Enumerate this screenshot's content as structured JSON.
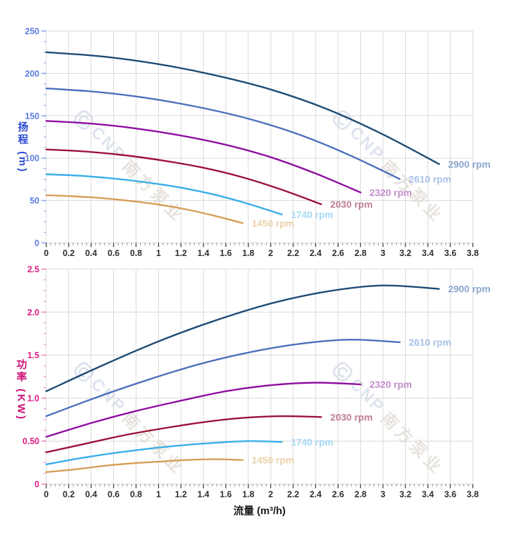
{
  "page": {
    "background": "#ffffff"
  },
  "watermark": {
    "brand_latin": "CNP",
    "brand_cn": "南方泵业"
  },
  "x_axis": {
    "label": "流量 (m³/h)",
    "min": 0,
    "max": 3.8,
    "major_step": 0.2,
    "minor_step": 0.04,
    "tick_labels": [
      "0",
      "0.2",
      "0.4",
      "0.6",
      "0.8",
      "1",
      "1.2",
      "1.4",
      "1.6",
      "1.8",
      "2",
      "2.2",
      "2.4",
      "2.6",
      "2.8",
      "3",
      "3.2",
      "3.4",
      "3.6",
      "3.8"
    ],
    "tick_label_color": "#2f2f2f",
    "major_tick_color": "#4a4a4a",
    "minor_tick_color": "#909090"
  },
  "chart_data": [
    {
      "id": "head-vs-flow",
      "type": "line",
      "title": "",
      "xlabel": "流量 (m³/h)",
      "ylabel": "扬程 (m)",
      "ylabel_cn": "扬程",
      "ylabel_unit": "(m)",
      "ylim": [
        0,
        250
      ],
      "xlim": [
        0,
        3.8
      ],
      "y_major_step": 50,
      "y_minor_step": 12.5,
      "y_tick_labels": [
        "0",
        "50",
        "100",
        "150",
        "200",
        "250"
      ],
      "grid": true,
      "grid_color": "#d8d8d8",
      "axis_title_color": "#2948cf",
      "tick_label_color": "#5b7be0",
      "tick_color": "#92a6ec",
      "legend_position": "end-of-line",
      "series": [
        {
          "name": "2900 rpm",
          "color": "#1c4a73",
          "label_color": "#8aa6cc",
          "points": [
            [
              0,
              225
            ],
            [
              0.5,
              220
            ],
            [
              1,
              211
            ],
            [
              1.5,
              198
            ],
            [
              2,
              181
            ],
            [
              2.5,
              158
            ],
            [
              3,
              128
            ],
            [
              3.5,
              93
            ]
          ]
        },
        {
          "name": "2610 rpm",
          "color": "#4a70bd",
          "label_color": "#a9c1e8",
          "points": [
            [
              0,
              182.3
            ],
            [
              0.45,
              178.2
            ],
            [
              0.9,
              170.9
            ],
            [
              1.35,
              160.4
            ],
            [
              1.8,
              146.6
            ],
            [
              2.25,
              128
            ],
            [
              2.7,
              103.7
            ],
            [
              3.15,
              75.3
            ]
          ]
        },
        {
          "name": "2320 rpm",
          "color": "#8e0da0",
          "label_color": "#c48ccc",
          "points": [
            [
              0,
              144
            ],
            [
              0.4,
              140.8
            ],
            [
              0.8,
              135
            ],
            [
              1.2,
              126.7
            ],
            [
              1.6,
              115.8
            ],
            [
              2,
              101.1
            ],
            [
              2.4,
              81.9
            ],
            [
              2.8,
              59.5
            ]
          ]
        },
        {
          "name": "2030 rpm",
          "color": "#9c1038",
          "label_color": "#bf7e92",
          "points": [
            [
              0,
              110.3
            ],
            [
              0.35,
              107.8
            ],
            [
              0.7,
              103.4
            ],
            [
              1.05,
              97
            ],
            [
              1.4,
              88.7
            ],
            [
              1.75,
              77.4
            ],
            [
              2.1,
              62.7
            ],
            [
              2.45,
              45.6
            ]
          ]
        },
        {
          "name": "1740 rpm",
          "color": "#38aee8",
          "label_color": "#a5d8f4",
          "points": [
            [
              0,
              81
            ],
            [
              0.3,
              79.2
            ],
            [
              0.6,
              76
            ],
            [
              0.9,
              71.3
            ],
            [
              1.2,
              65.2
            ],
            [
              1.5,
              56.9
            ],
            [
              1.8,
              46.1
            ],
            [
              2.1,
              33.5
            ]
          ]
        },
        {
          "name": "1450 rpm",
          "color": "#d79c55",
          "label_color": "#ebd2ab",
          "points": [
            [
              0,
              56.3
            ],
            [
              0.25,
              55
            ],
            [
              0.5,
              52.8
            ],
            [
              0.75,
              49.5
            ],
            [
              1,
              45.3
            ],
            [
              1.25,
              39.5
            ],
            [
              1.5,
              32
            ],
            [
              1.75,
              23.3
            ]
          ]
        }
      ]
    },
    {
      "id": "power-vs-flow",
      "type": "line",
      "title": "",
      "xlabel": "流量 (m³/h)",
      "ylabel": "功率 (KW)",
      "ylabel_cn": "功率",
      "ylabel_unit": "(KW)",
      "ylim": [
        0,
        2.5
      ],
      "xlim": [
        0,
        3.8
      ],
      "y_major_step": 0.5,
      "y_minor_step": 0.125,
      "y_tick_labels": [
        "0",
        "0.50",
        "1.0",
        "1.5",
        "2.0",
        "2.5"
      ],
      "grid": true,
      "grid_color": "#d8d8d8",
      "axis_title_color": "#cb0e76",
      "tick_label_color": "#e01984",
      "tick_color": "#f088c2",
      "legend_position": "end-of-line",
      "series": [
        {
          "name": "2900 rpm",
          "color": "#1c4a73",
          "label_color": "#8aa6cc",
          "points": [
            [
              0,
              1.08
            ],
            [
              0.5,
              1.38
            ],
            [
              1,
              1.66
            ],
            [
              1.5,
              1.9
            ],
            [
              2,
              2.1
            ],
            [
              2.5,
              2.24
            ],
            [
              3,
              2.31
            ],
            [
              3.5,
              2.27
            ]
          ]
        },
        {
          "name": "2610 rpm",
          "color": "#4a70bd",
          "label_color": "#a9c1e8",
          "points": [
            [
              0,
              0.79
            ],
            [
              0.45,
              1.01
            ],
            [
              0.9,
              1.21
            ],
            [
              1.35,
              1.39
            ],
            [
              1.8,
              1.53
            ],
            [
              2.25,
              1.63
            ],
            [
              2.7,
              1.68
            ],
            [
              3.15,
              1.65
            ]
          ]
        },
        {
          "name": "2320 rpm",
          "color": "#8e0da0",
          "label_color": "#c48ccc",
          "points": [
            [
              0,
              0.55
            ],
            [
              0.4,
              0.71
            ],
            [
              0.8,
              0.85
            ],
            [
              1.2,
              0.97
            ],
            [
              1.6,
              1.08
            ],
            [
              2,
              1.15
            ],
            [
              2.4,
              1.18
            ],
            [
              2.8,
              1.16
            ]
          ]
        },
        {
          "name": "2030 rpm",
          "color": "#9c1038",
          "label_color": "#bf7e92",
          "points": [
            [
              0,
              0.37
            ],
            [
              0.35,
              0.47
            ],
            [
              0.7,
              0.57
            ],
            [
              1.05,
              0.65
            ],
            [
              1.4,
              0.72
            ],
            [
              1.75,
              0.77
            ],
            [
              2.1,
              0.79
            ],
            [
              2.45,
              0.78
            ]
          ]
        },
        {
          "name": "1740 rpm",
          "color": "#38aee8",
          "label_color": "#a5d8f4",
          "points": [
            [
              0,
              0.23
            ],
            [
              0.3,
              0.3
            ],
            [
              0.6,
              0.36
            ],
            [
              0.9,
              0.41
            ],
            [
              1.2,
              0.45
            ],
            [
              1.5,
              0.48
            ],
            [
              1.8,
              0.5
            ],
            [
              2.1,
              0.49
            ]
          ]
        },
        {
          "name": "1450 rpm",
          "color": "#d79c55",
          "label_color": "#ebd2ab",
          "points": [
            [
              0,
              0.14
            ],
            [
              0.25,
              0.17
            ],
            [
              0.5,
              0.21
            ],
            [
              0.75,
              0.24
            ],
            [
              1,
              0.26
            ],
            [
              1.25,
              0.28
            ],
            [
              1.5,
              0.29
            ],
            [
              1.75,
              0.28
            ]
          ]
        }
      ]
    }
  ]
}
